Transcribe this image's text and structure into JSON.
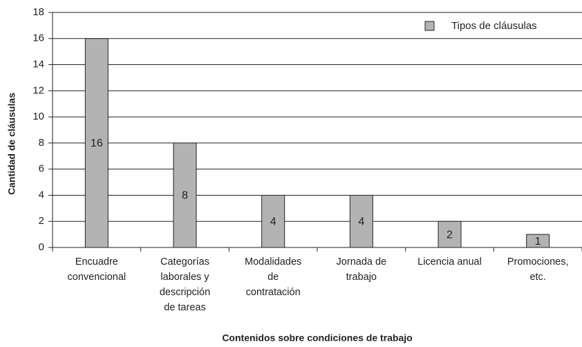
{
  "chart_data": {
    "type": "bar",
    "xlabel": "Contenidos sobre condiciones de trabajo",
    "ylabel": "Cantidad de cláusulas",
    "categories": [
      "Encuadre\nconvencional",
      "Categorías\nlaborales y\ndescripción\nde tareas",
      "Modalidades\nde\ncontratación",
      "Jornada de\ntrabajo",
      "Licencia anual",
      "Promociones,\netc."
    ],
    "series": [
      {
        "name": "Tipos de cláusulas",
        "color": "#b3b3b3",
        "values": [
          16,
          8,
          4,
          4,
          2,
          1
        ]
      }
    ],
    "ylim": [
      0,
      18
    ],
    "yticks": [
      0,
      2,
      4,
      6,
      8,
      10,
      12,
      14,
      16,
      18
    ],
    "grid": true,
    "legend": "upper right"
  }
}
